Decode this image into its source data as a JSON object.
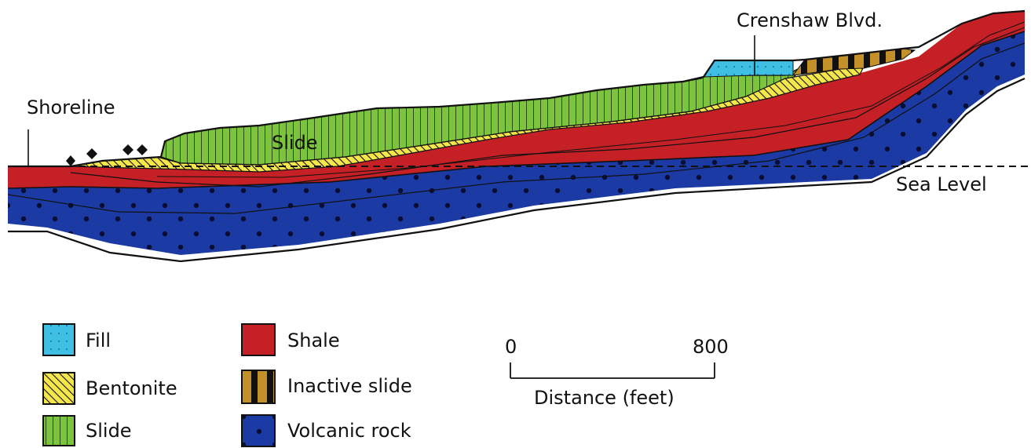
{
  "labels": {
    "shoreline": "Shoreline",
    "crenshaw": "Crenshaw Blvd.",
    "slide": "Slide",
    "sea_level": "Sea Level"
  },
  "legend": [
    {
      "label": "Fill",
      "color": "#3fbfe4",
      "pattern": "dots"
    },
    {
      "label": "Bentonite",
      "color": "#f5e64a",
      "pattern": "diagonal-hatch"
    },
    {
      "label": "Slide",
      "color": "#7cc43e",
      "pattern": "vertical-lines"
    },
    {
      "label": "Shale",
      "color": "#c42025",
      "pattern": "solid"
    },
    {
      "label": "Inactive slide",
      "color": "#c4902a",
      "pattern": "black-stripes"
    },
    {
      "label": "Volcanic rock",
      "color": "#1b3aa3",
      "pattern": "dark-dots"
    }
  ],
  "scale": {
    "min_label": "0",
    "max_label": "800",
    "caption": "Distance (feet)"
  }
}
